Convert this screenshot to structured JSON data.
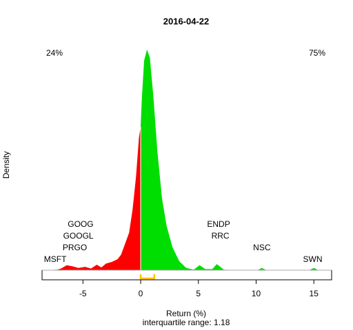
{
  "chart_data": {
    "type": "density",
    "title": "2016-04-22",
    "xlabel": "Return (%)",
    "ylabel": "Density",
    "subtitle": "interquartile range: 1.18",
    "left_share": "24%",
    "right_share": "75%",
    "negative_color": "#ff0000",
    "positive_color": "#00dd00",
    "quartiles": [
      0,
      1.18
    ],
    "quartile_color": "#ffc000",
    "x": [
      -8.5,
      -7.2,
      -6.9,
      -6.4,
      -5.9,
      -5.4,
      -4.8,
      -4.3,
      -3.8,
      -3.4,
      -3.0,
      -2.5,
      -2.0,
      -1.7,
      -1.4,
      -1.0,
      -0.7,
      -0.4,
      -0.15,
      0,
      0.1,
      0.3,
      0.55,
      0.8,
      1.1,
      1.45,
      1.85,
      2.25,
      2.75,
      3.35,
      3.95,
      4.6,
      5.1,
      5.6,
      6.2,
      6.6,
      7.2,
      8.5,
      10.1,
      10.5,
      10.9,
      14.6,
      15,
      15.4,
      16.5
    ],
    "values": [
      0,
      0.001,
      0.003,
      0.009,
      0.007,
      0.004,
      0.006,
      0.003,
      0.01,
      0.005,
      0.012,
      0.015,
      0.02,
      0.028,
      0.045,
      0.068,
      0.11,
      0.17,
      0.24,
      0.26,
      0.31,
      0.38,
      0.4,
      0.385,
      0.315,
      0.215,
      0.13,
      0.08,
      0.042,
      0.016,
      0.004,
      0.001,
      0.009,
      0.002,
      0.002,
      0.011,
      0.001,
      0,
      0,
      0.004,
      0,
      0,
      0.004,
      0,
      0
    ],
    "annotations": [
      {
        "text": "MSFT",
        "x": -7.4
      },
      {
        "text": "PRGO",
        "x": -5.7
      },
      {
        "text": "GOOGL",
        "x": -5.4
      },
      {
        "text": "GOOG",
        "x": -5.2
      },
      {
        "text": "ENDP",
        "x": 6.75
      },
      {
        "text": "RRC",
        "x": 6.9
      },
      {
        "text": "NSC",
        "x": 10.5
      },
      {
        "text": "SWN",
        "x": 14.9
      }
    ],
    "xlim": [
      -8.54,
      16.54
    ],
    "xticks": [
      -5,
      0,
      5,
      10,
      15
    ],
    "ylim": [
      0,
      0.42
    ]
  }
}
